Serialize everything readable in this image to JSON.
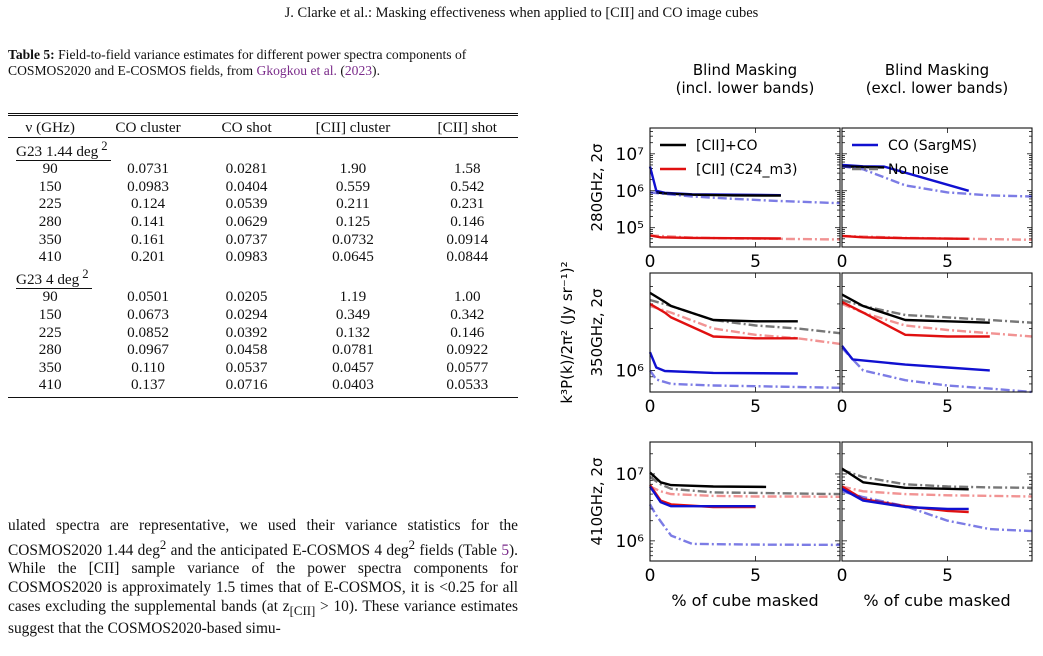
{
  "running_header": "J. Clarke et al.: Masking effectiveness when applied to [CII] and CO image cubes",
  "caption": {
    "label": "Table 5:",
    "text": "Field-to-field variance estimates for different power spectra components of COSMOS2020 and E-COSMOS fields, from",
    "cite_author": "Gkogkou et al.",
    "cite_year": "2023",
    "end": "."
  },
  "table": {
    "headers": [
      "ν (GHz)",
      "CO cluster",
      "CO shot",
      "[CII] cluster",
      "[CII] shot"
    ],
    "sections": [
      {
        "label": "G23 1.44 deg",
        "superscript": "2",
        "rows": [
          [
            "90",
            "0.0731",
            "0.0281",
            "1.90",
            "1.58"
          ],
          [
            "150",
            "0.0983",
            "0.0404",
            "0.559",
            "0.542"
          ],
          [
            "225",
            "0.124",
            "0.0539",
            "0.211",
            "0.231"
          ],
          [
            "280",
            "0.141",
            "0.0629",
            "0.125",
            "0.146"
          ],
          [
            "350",
            "0.161",
            "0.0737",
            "0.0732",
            "0.0914"
          ],
          [
            "410",
            "0.201",
            "0.0983",
            "0.0645",
            "0.0844"
          ]
        ]
      },
      {
        "label": "G23 4 deg",
        "superscript": "2",
        "rows": [
          [
            "90",
            "0.0501",
            "0.0205",
            "1.19",
            "1.00"
          ],
          [
            "150",
            "0.0673",
            "0.0294",
            "0.349",
            "0.342"
          ],
          [
            "225",
            "0.0852",
            "0.0392",
            "0.132",
            "0.146"
          ],
          [
            "280",
            "0.0967",
            "0.0458",
            "0.0781",
            "0.0922"
          ],
          [
            "350",
            "0.110",
            "0.0537",
            "0.0457",
            "0.0577"
          ],
          [
            "410",
            "0.137",
            "0.0716",
            "0.0403",
            "0.0533"
          ]
        ]
      }
    ]
  },
  "body": {
    "p1": "ulated spectra are representative, we used their variance statistics for the COSMOS2020 1.44 deg",
    "p2": " and the anticipated E-COSMOS 4 deg",
    "p3": " fields (Table ",
    "table_ref": "5",
    "p4": "). While the [CII] sample variance of the power spectra components for COSMOS2020 is approximately 1.5 times that of E-COSMOS, it is <0.25 for all cases excluding the supplemental bands (at z",
    "p4_sub": "[CII]",
    "p5": " > 10). These variance estimates suggest that the COSMOS2020-based simu-",
    "sup": "2"
  },
  "chart_data": {
    "type": "line",
    "columns": [
      "Blind Masking\n(incl. lower bands)",
      "Blind Masking\n(excl. lower bands)"
    ],
    "rows": [
      "280GHz, 2σ",
      "350GHz, 2σ",
      "410GHz, 2σ"
    ],
    "ylabel": "k³P(k)/2π² (Jy sr⁻¹)²",
    "xlabel": "% of cube masked",
    "xlim": [
      0,
      9
    ],
    "xticks": [
      0,
      5
    ],
    "yscale": "log",
    "legend": [
      {
        "name": "[CII]+CO",
        "color": "#000000",
        "style": "solid"
      },
      {
        "name": "[CII] (C24_m3)",
        "color": "#e01010",
        "style": "solid"
      },
      {
        "name": "CO (SargMS)",
        "color": "#1010d0",
        "style": "solid"
      },
      {
        "name": "No noise",
        "color": "#777777",
        "style": "dashdot"
      }
    ],
    "panels": [
      {
        "row": 0,
        "col": 0,
        "ylim": [
          30000,
          50000000
        ],
        "yticks": [
          100000,
          1000000,
          10000000
        ],
        "series": [
          {
            "color": "#1010d0",
            "style": "solid",
            "alpha": 1,
            "x": [
              0,
              0.3,
              0.7,
              2,
              4,
              6.2
            ],
            "y": [
              4500000,
              1000000,
              880000,
              800000,
              780000,
              760000
            ]
          },
          {
            "color": "#000000",
            "style": "solid",
            "alpha": 1,
            "x": [
              0.3,
              0.7,
              2,
              4,
              6.2
            ],
            "y": [
              900000,
              850000,
              780000,
              750000,
              740000
            ]
          },
          {
            "color": "#e01010",
            "style": "solid",
            "alpha": 1,
            "x": [
              0,
              0.5,
              2,
              4,
              6.2
            ],
            "y": [
              62000,
              55000,
              53000,
              52000,
              51000
            ]
          },
          {
            "color": "#1010d0",
            "style": "dashdot",
            "alpha": 0.55,
            "x": [
              0,
              0.7,
              2,
              4,
              6,
              9
            ],
            "y": [
              900000,
              820000,
              700000,
              600000,
              530000,
              460000
            ]
          },
          {
            "color": "#e01010",
            "style": "dashdot",
            "alpha": 0.45,
            "x": [
              0,
              2,
              4,
              6,
              9
            ],
            "y": [
              62000,
              54000,
              51000,
              50000,
              48000
            ]
          }
        ]
      },
      {
        "row": 0,
        "col": 1,
        "ylim": [
          30000,
          50000000
        ],
        "yticks": [
          100000,
          1000000,
          10000000
        ],
        "series": [
          {
            "color": "#1010d0",
            "style": "solid",
            "alpha": 1,
            "x": [
              0,
              1,
              2,
              6
            ],
            "y": [
              5000000,
              4600000,
              4500000,
              1000000
            ]
          },
          {
            "color": "#000000",
            "style": "solid",
            "alpha": 1,
            "x": [
              0,
              1,
              2
            ],
            "y": [
              4600000,
              4400000,
              4300000
            ]
          },
          {
            "color": "#e01010",
            "style": "solid",
            "alpha": 1,
            "x": [
              0,
              1,
              3,
              6
            ],
            "y": [
              60000,
              55000,
              52000,
              50000
            ]
          },
          {
            "color": "#1010d0",
            "style": "dashdot",
            "alpha": 0.55,
            "x": [
              0,
              1,
              3,
              5,
              7,
              9
            ],
            "y": [
              4600000,
              3800000,
              1400000,
              900000,
              750000,
              700000
            ]
          },
          {
            "color": "#e01010",
            "style": "dashdot",
            "alpha": 0.45,
            "x": [
              0,
              3,
              6,
              9
            ],
            "y": [
              60000,
              53000,
              50000,
              47000
            ]
          }
        ]
      },
      {
        "row": 1,
        "col": 0,
        "ylim": [
          700000,
          5000000
        ],
        "yticks": [
          1000000
        ],
        "series": [
          {
            "color": "#777777",
            "style": "dashdot",
            "alpha": 1,
            "x": [
              0,
              1,
              3,
              5,
              7,
              9
            ],
            "y": [
              3200000,
              2900000,
              2300000,
              2100000,
              2000000,
              1850000
            ]
          },
          {
            "color": "#000000",
            "style": "solid",
            "alpha": 1,
            "x": [
              0,
              0.7,
              1,
              3,
              5,
              7
            ],
            "y": [
              3600000,
              3100000,
              2900000,
              2300000,
              2250000,
              2250000
            ]
          },
          {
            "color": "#e01010",
            "style": "dashdot",
            "alpha": 0.45,
            "x": [
              0,
              1,
              3,
              5,
              7,
              9
            ],
            "y": [
              2900000,
              2600000,
              2000000,
              1800000,
              1700000,
              1550000
            ]
          },
          {
            "color": "#e01010",
            "style": "solid",
            "alpha": 1,
            "x": [
              0,
              0.7,
              1,
              3,
              5,
              7
            ],
            "y": [
              3000000,
              2600000,
              2400000,
              1750000,
              1700000,
              1700000
            ]
          },
          {
            "color": "#1010d0",
            "style": "solid",
            "alpha": 1,
            "x": [
              0,
              0.3,
              0.7,
              3,
              7
            ],
            "y": [
              1350000,
              1050000,
              990000,
              960000,
              950000
            ]
          },
          {
            "color": "#1010d0",
            "style": "dashdot",
            "alpha": 0.55,
            "x": [
              0,
              0.3,
              1,
              3,
              5,
              7,
              9
            ],
            "y": [
              1000000,
              860000,
              800000,
              780000,
              770000,
              760000,
              750000
            ]
          }
        ]
      },
      {
        "row": 1,
        "col": 1,
        "ylim": [
          700000,
          5000000
        ],
        "yticks": [
          1000000
        ],
        "series": [
          {
            "color": "#777777",
            "style": "dashdot",
            "alpha": 1,
            "x": [
              0,
              1,
              3,
              5,
              7,
              9
            ],
            "y": [
              3200000,
              2900000,
              2500000,
              2400000,
              2300000,
              2200000
            ]
          },
          {
            "color": "#000000",
            "style": "solid",
            "alpha": 1,
            "x": [
              0,
              1,
              3,
              5,
              7
            ],
            "y": [
              3500000,
              2900000,
              2300000,
              2250000,
              2200000
            ]
          },
          {
            "color": "#e01010",
            "style": "dashdot",
            "alpha": 0.45,
            "x": [
              0,
              1,
              3,
              5,
              7,
              9
            ],
            "y": [
              3000000,
              2600000,
              2100000,
              1950000,
              1850000,
              1750000
            ]
          },
          {
            "color": "#e01010",
            "style": "solid",
            "alpha": 1,
            "x": [
              0,
              1,
              3,
              5,
              7
            ],
            "y": [
              3100000,
              2600000,
              1800000,
              1750000,
              1750000
            ]
          },
          {
            "color": "#1010d0",
            "style": "solid",
            "alpha": 1,
            "x": [
              0,
              0.5,
              3,
              5,
              7
            ],
            "y": [
              1500000,
              1200000,
              1100000,
              1050000,
              1000000
            ]
          },
          {
            "color": "#1010d0",
            "style": "dashdot",
            "alpha": 0.55,
            "x": [
              0,
              1,
              3,
              5,
              7,
              9
            ],
            "y": [
              1450000,
              1000000,
              850000,
              780000,
              740000,
              700000
            ]
          }
        ]
      },
      {
        "row": 2,
        "col": 0,
        "ylim": [
          500000,
          30000000
        ],
        "yticks": [
          1000000,
          10000000
        ],
        "series": [
          {
            "color": "#777777",
            "style": "dashdot",
            "alpha": 1,
            "x": [
              0,
              0.5,
              1,
              3,
              5,
              7,
              9
            ],
            "y": [
              9000000,
              7000000,
              6000000,
              5300000,
              5200000,
              5100000,
              5000000
            ]
          },
          {
            "color": "#000000",
            "style": "solid",
            "alpha": 1,
            "x": [
              0,
              0.5,
              1,
              3,
              5.5
            ],
            "y": [
              10500000,
              7500000,
              6800000,
              6500000,
              6400000
            ]
          },
          {
            "color": "#e01010",
            "style": "dashdot",
            "alpha": 0.45,
            "x": [
              0,
              0.5,
              1,
              3,
              5,
              7,
              9
            ],
            "y": [
              6500000,
              5500000,
              5000000,
              4700000,
              4600000,
              4600000,
              4550000
            ]
          },
          {
            "color": "#e01010",
            "style": "solid",
            "alpha": 1,
            "x": [
              0,
              0.5,
              1,
              3,
              5
            ],
            "y": [
              6800000,
              4000000,
              3500000,
              3200000,
              3200000
            ]
          },
          {
            "color": "#1010d0",
            "style": "solid",
            "alpha": 1,
            "x": [
              0,
              0.5,
              1,
              3,
              5
            ],
            "y": [
              6500000,
              3800000,
              3300000,
              3300000,
              3300000
            ]
          },
          {
            "color": "#1010d0",
            "style": "dashdot",
            "alpha": 0.55,
            "x": [
              0,
              0.3,
              1,
              2,
              5,
              9
            ],
            "y": [
              3500000,
              2400000,
              1200000,
              900000,
              880000,
              870000
            ]
          }
        ]
      },
      {
        "row": 2,
        "col": 1,
        "ylim": [
          500000,
          30000000
        ],
        "yticks": [
          1000000,
          10000000
        ],
        "series": [
          {
            "color": "#777777",
            "style": "dashdot",
            "alpha": 1,
            "x": [
              0,
              1,
              3,
              5,
              7,
              9
            ],
            "y": [
              11500000,
              9000000,
              7000000,
              6500000,
              6300000,
              6200000
            ]
          },
          {
            "color": "#000000",
            "style": "solid",
            "alpha": 1,
            "x": [
              0,
              1,
              3,
              5,
              6
            ],
            "y": [
              12000000,
              7500000,
              6200000,
              6000000,
              5900000
            ]
          },
          {
            "color": "#e01010",
            "style": "dashdot",
            "alpha": 0.45,
            "x": [
              0,
              1,
              3,
              5,
              7,
              9
            ],
            "y": [
              6500000,
              5500000,
              5000000,
              4800000,
              4700000,
              4600000
            ]
          },
          {
            "color": "#e01010",
            "style": "solid",
            "alpha": 1,
            "x": [
              0,
              1,
              3,
              5,
              6
            ],
            "y": [
              6500000,
              4200000,
              3300000,
              2800000,
              2700000
            ]
          },
          {
            "color": "#1010d0",
            "style": "solid",
            "alpha": 1,
            "x": [
              0,
              1,
              3,
              5,
              6
            ],
            "y": [
              6000000,
              4000000,
              3200000,
              3000000,
              3000000
            ]
          },
          {
            "color": "#1010d0",
            "style": "dashdot",
            "alpha": 0.55,
            "x": [
              0,
              1,
              3,
              5,
              7,
              9
            ],
            "y": [
              5500000,
              4500000,
              3300000,
              2000000,
              1500000,
              1400000
            ]
          }
        ]
      }
    ]
  }
}
